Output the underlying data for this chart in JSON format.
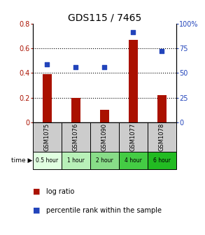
{
  "title": "GDS115 / 7465",
  "samples": [
    "GSM1075",
    "GSM1076",
    "GSM1090",
    "GSM1077",
    "GSM1078"
  ],
  "time_labels": [
    "0.5 hour",
    "1 hour",
    "2 hour",
    "4 hour",
    "6 hour"
  ],
  "time_colors": [
    "#e0ffe0",
    "#b8f0b8",
    "#88dd88",
    "#44cc44",
    "#22bb22"
  ],
  "log_ratio": [
    0.39,
    0.2,
    0.1,
    0.67,
    0.22
  ],
  "percentile": [
    59,
    56,
    56,
    91,
    72
  ],
  "bar_color": "#aa1100",
  "dot_color": "#2244bb",
  "left_ylim": [
    0,
    0.8
  ],
  "right_ylim": [
    0,
    100
  ],
  "left_yticks": [
    0,
    0.2,
    0.4,
    0.6,
    0.8
  ],
  "right_yticks": [
    0,
    25,
    50,
    75,
    100
  ],
  "right_yticklabels": [
    "0",
    "25",
    "50",
    "75",
    "100%"
  ],
  "title_fontsize": 10,
  "tick_fontsize": 7,
  "legend_fontsize": 7,
  "sample_bg_color": "#cccccc",
  "bar_width": 0.3
}
